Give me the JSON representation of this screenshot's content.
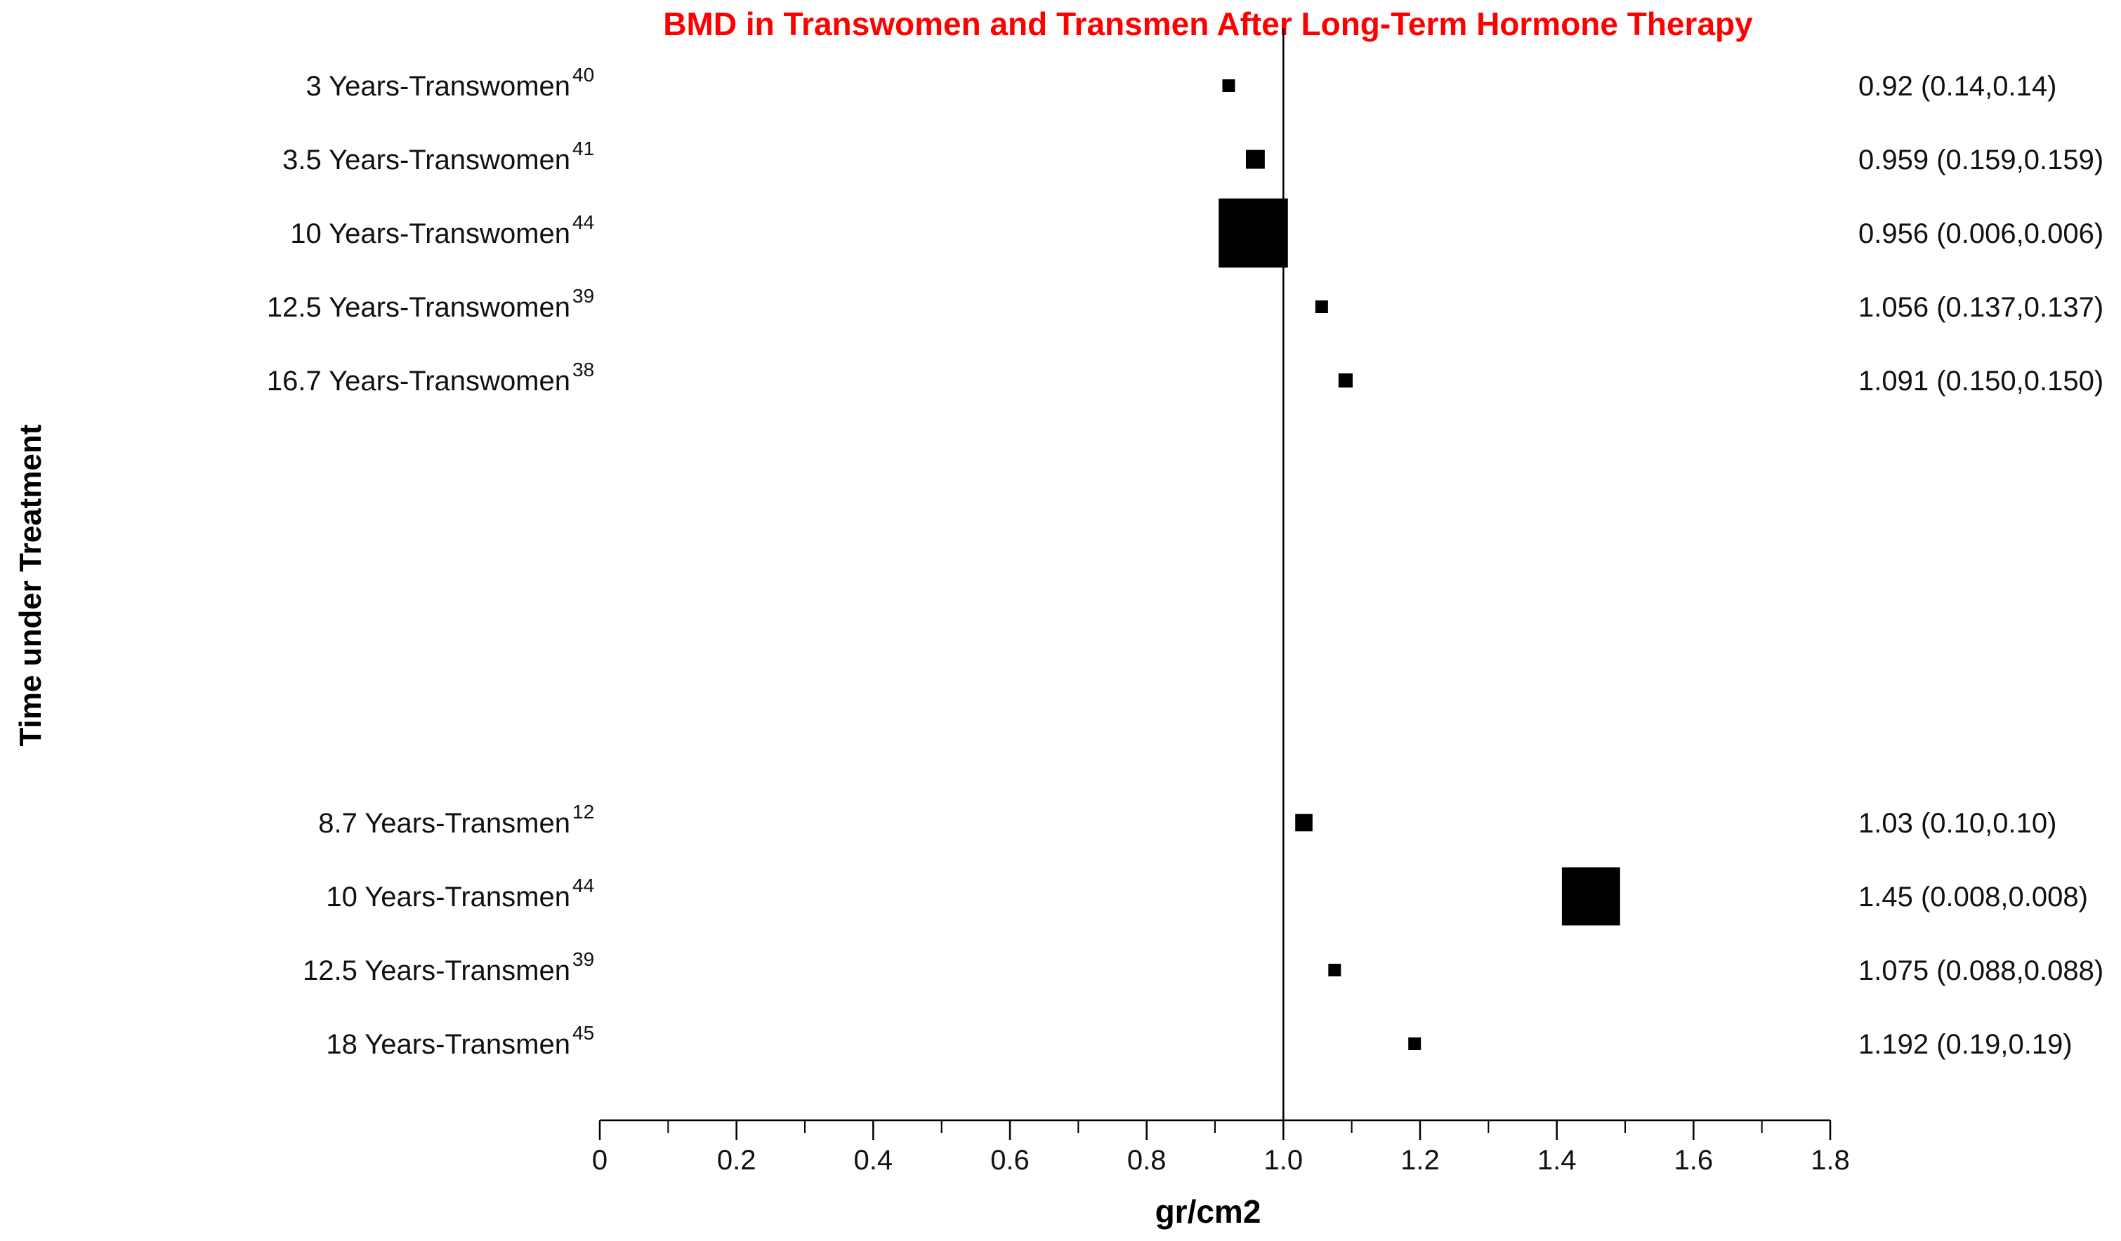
{
  "colors": {
    "title": "#ff0000",
    "marker": "#000000",
    "axis": "#000000",
    "text": "#111111"
  },
  "chart_data": {
    "type": "scatter",
    "title": "BMD  in Transwomen and Transmen After Long-Term Hormone Therapy",
    "xlabel": "gr/cm2",
    "ylabel": "Time under Treatment",
    "xlim": [
      0,
      1.8
    ],
    "xticks": [
      "0",
      "0.2",
      "0.4",
      "0.6",
      "0.8",
      "1.0",
      "1.2",
      "1.4",
      "1.6",
      "1.8"
    ],
    "xtick_values": [
      0,
      0.2,
      0.4,
      0.6,
      0.8,
      1.0,
      1.2,
      1.4,
      1.6,
      1.8
    ],
    "reference_line": 1.0,
    "grid": false,
    "legend": "none",
    "series": [
      {
        "label": "3 Years-Transwomen",
        "ref": "40",
        "value": 0.92,
        "summary": "0.92 (0.14,0.14)",
        "weight": 0.14
      },
      {
        "label": "3.5 Years-Transwomen",
        "ref": "41",
        "value": 0.959,
        "summary": "0.959 (0.159,0.159)",
        "weight": 0.24
      },
      {
        "label": "10 Years-Transwomen",
        "ref": "44",
        "value": 0.956,
        "summary": "0.956 (0.006,0.006)",
        "weight": 0.88
      },
      {
        "label": "12.5 Years-Transwomen",
        "ref": "39",
        "value": 1.056,
        "summary": "1.056 (0.137,0.137)",
        "weight": 0.12
      },
      {
        "label": "16.7 Years-Transwomen",
        "ref": "38",
        "value": 1.091,
        "summary": "1.091 (0.150,0.150)",
        "weight": 0.18
      },
      {
        "label": "8.7 Years-Transmen",
        "ref": "12",
        "value": 1.03,
        "summary": "1.03 (0.10,0.10)",
        "weight": 0.22
      },
      {
        "label": "10 Years-Transmen",
        "ref": "44",
        "value": 1.45,
        "summary": "1.45 (0.008,0.008)",
        "weight": 0.74
      },
      {
        "label": "12.5 Years-Transmen",
        "ref": "39",
        "value": 1.075,
        "summary": "1.075 (0.088,0.088)",
        "weight": 0.1
      },
      {
        "label": "18 Years-Transmen",
        "ref": "45",
        "value": 1.192,
        "summary": "1.192 (0.19,0.19)",
        "weight": 0.16
      }
    ]
  }
}
